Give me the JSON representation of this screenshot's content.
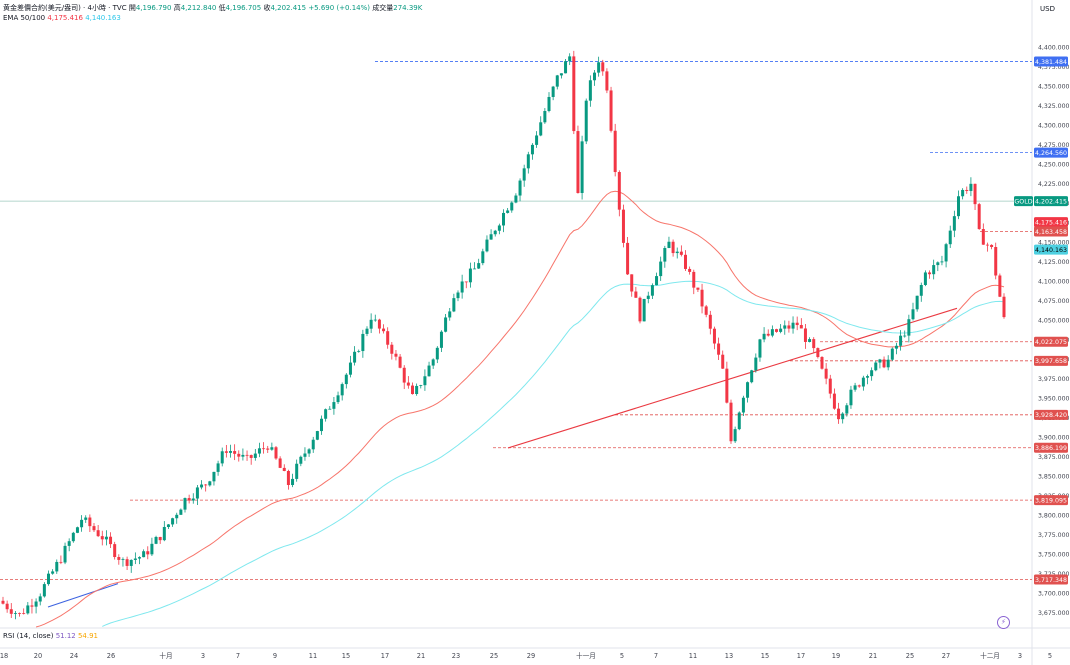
{
  "header": {
    "symbol_title": "黄金差價合約(美元/盎司) · 4小時 · TVC",
    "open_label": "開",
    "open_value": "4,196.790",
    "high_label": "高",
    "high_value": "4,212.840",
    "low_label": "低",
    "low_value": "4,196.705",
    "close_label": "收",
    "close_value": "4,202.415",
    "change_value": "+5.690 (+0.14%)",
    "volume_label": "成交量",
    "volume_value": "274.39K",
    "ema_label": "EMA 50/100",
    "ema50_value": "4,175.416",
    "ema100_value": "4,140.163"
  },
  "rsi_legend": {
    "label": "RSI (14, close)",
    "value1": "51.12",
    "value2": "54.91"
  },
  "price_axis": {
    "unit": "USD",
    "ticks": [
      "4,400.000",
      "4,375.000",
      "4,350.000",
      "4,325.000",
      "4,300.000",
      "4,275.000",
      "4,250.000",
      "4,225.000",
      "4,200.000",
      "4,175.000",
      "4,150.000",
      "4,125.000",
      "4,100.000",
      "4,075.000",
      "4,050.000",
      "4,025.000",
      "4,000.000",
      "3,975.000",
      "3,950.000",
      "3,925.000",
      "3,900.000",
      "3,875.000",
      "3,850.000",
      "3,825.000",
      "3,800.000",
      "3,775.000",
      "3,750.000",
      "3,725.000",
      "3,700.000",
      "3,675.000"
    ]
  },
  "time_axis": {
    "labels": [
      "18",
      "20",
      "24",
      "26",
      "十月",
      "3",
      "7",
      "9",
      "11",
      "15",
      "17",
      "21",
      "23",
      "25",
      "29",
      "十一月",
      "5",
      "7",
      "11",
      "13",
      "15",
      "17",
      "19",
      "21",
      "25",
      "27",
      "十二月",
      "3",
      "5"
    ]
  },
  "price_labels": [
    {
      "text": "4,381.484",
      "price": 4381.484,
      "kind": "level"
    },
    {
      "text": "4,264.560",
      "price": 4264.56,
      "kind": "level"
    },
    {
      "text": "GOLD",
      "price": 4202.415,
      "kind": "symbol"
    },
    {
      "text": "4,202.415",
      "price": 4202.415,
      "kind": "last"
    },
    {
      "text": "4,175.416",
      "price": 4175.416,
      "kind": "ema50"
    },
    {
      "text": "4,163.458",
      "price": 4163.458,
      "kind": "level"
    },
    {
      "text": "4,140.163",
      "price": 4140.163,
      "kind": "ema100"
    },
    {
      "text": "4,022.075",
      "price": 4022.075,
      "kind": "level"
    },
    {
      "text": "3,997.658",
      "price": 3997.658,
      "kind": "level"
    },
    {
      "text": "3,928.420",
      "price": 3928.42,
      "kind": "level"
    },
    {
      "text": "3,886.199",
      "price": 3886.199,
      "kind": "level"
    },
    {
      "text": "3,819.095",
      "price": 3819.095,
      "kind": "level"
    },
    {
      "text": "3,717.348",
      "price": 3717.348,
      "kind": "level"
    }
  ],
  "colors": {
    "up": "#089981",
    "down": "#f23645",
    "ema50": "#f7756b",
    "ema100": "#7fe8ee",
    "level_red": "#e0514f",
    "level_blue": "#3f6ff2",
    "trend": "#ea3a42",
    "blue_trend": "#3d63e0",
    "last_line": "#9cc8bd",
    "grid": "#f0f3fa",
    "axis_text": "#434651"
  },
  "chart_data": {
    "type": "candlestick",
    "symbol": "GOLD",
    "interval": "4h",
    "ylim": [
      3660,
      4425
    ],
    "bars": 243,
    "path_anchors": [
      [
        0,
        3690
      ],
      [
        5,
        3672
      ],
      [
        10,
        3700
      ],
      [
        15,
        3745
      ],
      [
        20,
        3795
      ],
      [
        25,
        3772
      ],
      [
        30,
        3740
      ],
      [
        35,
        3748
      ],
      [
        40,
        3780
      ],
      [
        45,
        3820
      ],
      [
        50,
        3840
      ],
      [
        55,
        3885
      ],
      [
        60,
        3870
      ],
      [
        65,
        3890
      ],
      [
        70,
        3840
      ],
      [
        75,
        3890
      ],
      [
        80,
        3940
      ],
      [
        85,
        3990
      ],
      [
        90,
        4055
      ],
      [
        95,
        4012
      ],
      [
        100,
        3950
      ],
      [
        105,
        4000
      ],
      [
        110,
        4085
      ],
      [
        115,
        4115
      ],
      [
        120,
        4168
      ],
      [
        125,
        4215
      ],
      [
        130,
        4290
      ],
      [
        135,
        4360
      ],
      [
        138,
        4388
      ],
      [
        140,
        4210
      ],
      [
        142,
        4335
      ],
      [
        145,
        4385
      ],
      [
        147,
        4350
      ],
      [
        150,
        4195
      ],
      [
        152,
        4110
      ],
      [
        155,
        4055
      ],
      [
        158,
        4100
      ],
      [
        162,
        4148
      ],
      [
        166,
        4120
      ],
      [
        170,
        4070
      ],
      [
        175,
        3985
      ],
      [
        177,
        3895
      ],
      [
        180,
        3955
      ],
      [
        184,
        4025
      ],
      [
        188,
        4035
      ],
      [
        193,
        4045
      ],
      [
        197,
        4010
      ],
      [
        200,
        3970
      ],
      [
        203,
        3928
      ],
      [
        206,
        3955
      ],
      [
        210,
        3985
      ],
      [
        215,
        3998
      ],
      [
        220,
        4045
      ],
      [
        224,
        4110
      ],
      [
        228,
        4125
      ],
      [
        232,
        4210
      ],
      [
        235,
        4225
      ],
      [
        237,
        4160
      ],
      [
        240,
        4140
      ],
      [
        243,
        4050
      ]
    ],
    "series": [
      {
        "name": "EMA 50",
        "last": 4175.416
      },
      {
        "name": "EMA 100",
        "last": 4140.163
      }
    ],
    "horizontal_levels": [
      4381.484,
      4264.56,
      4163.458,
      4022.075,
      3997.658,
      3928.42,
      3886.199,
      3819.095,
      3717.348
    ],
    "trendlines": [
      {
        "from": [
          3886,
          0.59
        ],
        "to": [
          4065,
          0.89
        ]
      },
      {
        "from": [
          3682,
          0.05
        ],
        "to": [
          3712,
          0.11
        ]
      }
    ],
    "last_price": 4202.415
  }
}
